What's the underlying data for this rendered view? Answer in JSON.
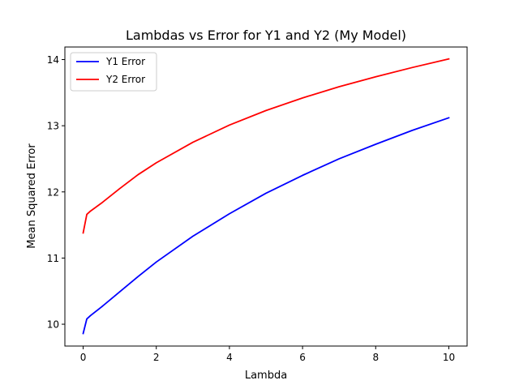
{
  "chart_data": {
    "type": "line",
    "title": "Lambdas vs Error for Y1 and Y2 (My Model)",
    "xlabel": "Lambda",
    "ylabel": "Mean Squared Error",
    "xlim": [
      -0.5,
      10.5
    ],
    "ylim": [
      9.67,
      14.19
    ],
    "xticks": [
      0,
      2,
      4,
      6,
      8,
      10
    ],
    "yticks": [
      10,
      11,
      12,
      13,
      14
    ],
    "grid": false,
    "legend_position": "top-left",
    "series": [
      {
        "name": "Y1 Error",
        "color": "#0000ff",
        "x": [
          0,
          0.1,
          0.2,
          0.5,
          1,
          1.5,
          2,
          3,
          4,
          5,
          6,
          7,
          8,
          9,
          10
        ],
        "y": [
          9.86,
          10.08,
          10.13,
          10.26,
          10.49,
          10.72,
          10.94,
          11.33,
          11.67,
          11.98,
          12.25,
          12.5,
          12.72,
          12.93,
          13.12
        ]
      },
      {
        "name": "Y2 Error",
        "color": "#ff0000",
        "x": [
          0,
          0.1,
          0.2,
          0.5,
          1,
          1.5,
          2,
          3,
          4,
          5,
          6,
          7,
          8,
          9,
          10
        ],
        "y": [
          11.38,
          11.66,
          11.71,
          11.83,
          12.05,
          12.26,
          12.44,
          12.75,
          13.01,
          13.23,
          13.42,
          13.59,
          13.74,
          13.88,
          14.01
        ]
      }
    ]
  }
}
